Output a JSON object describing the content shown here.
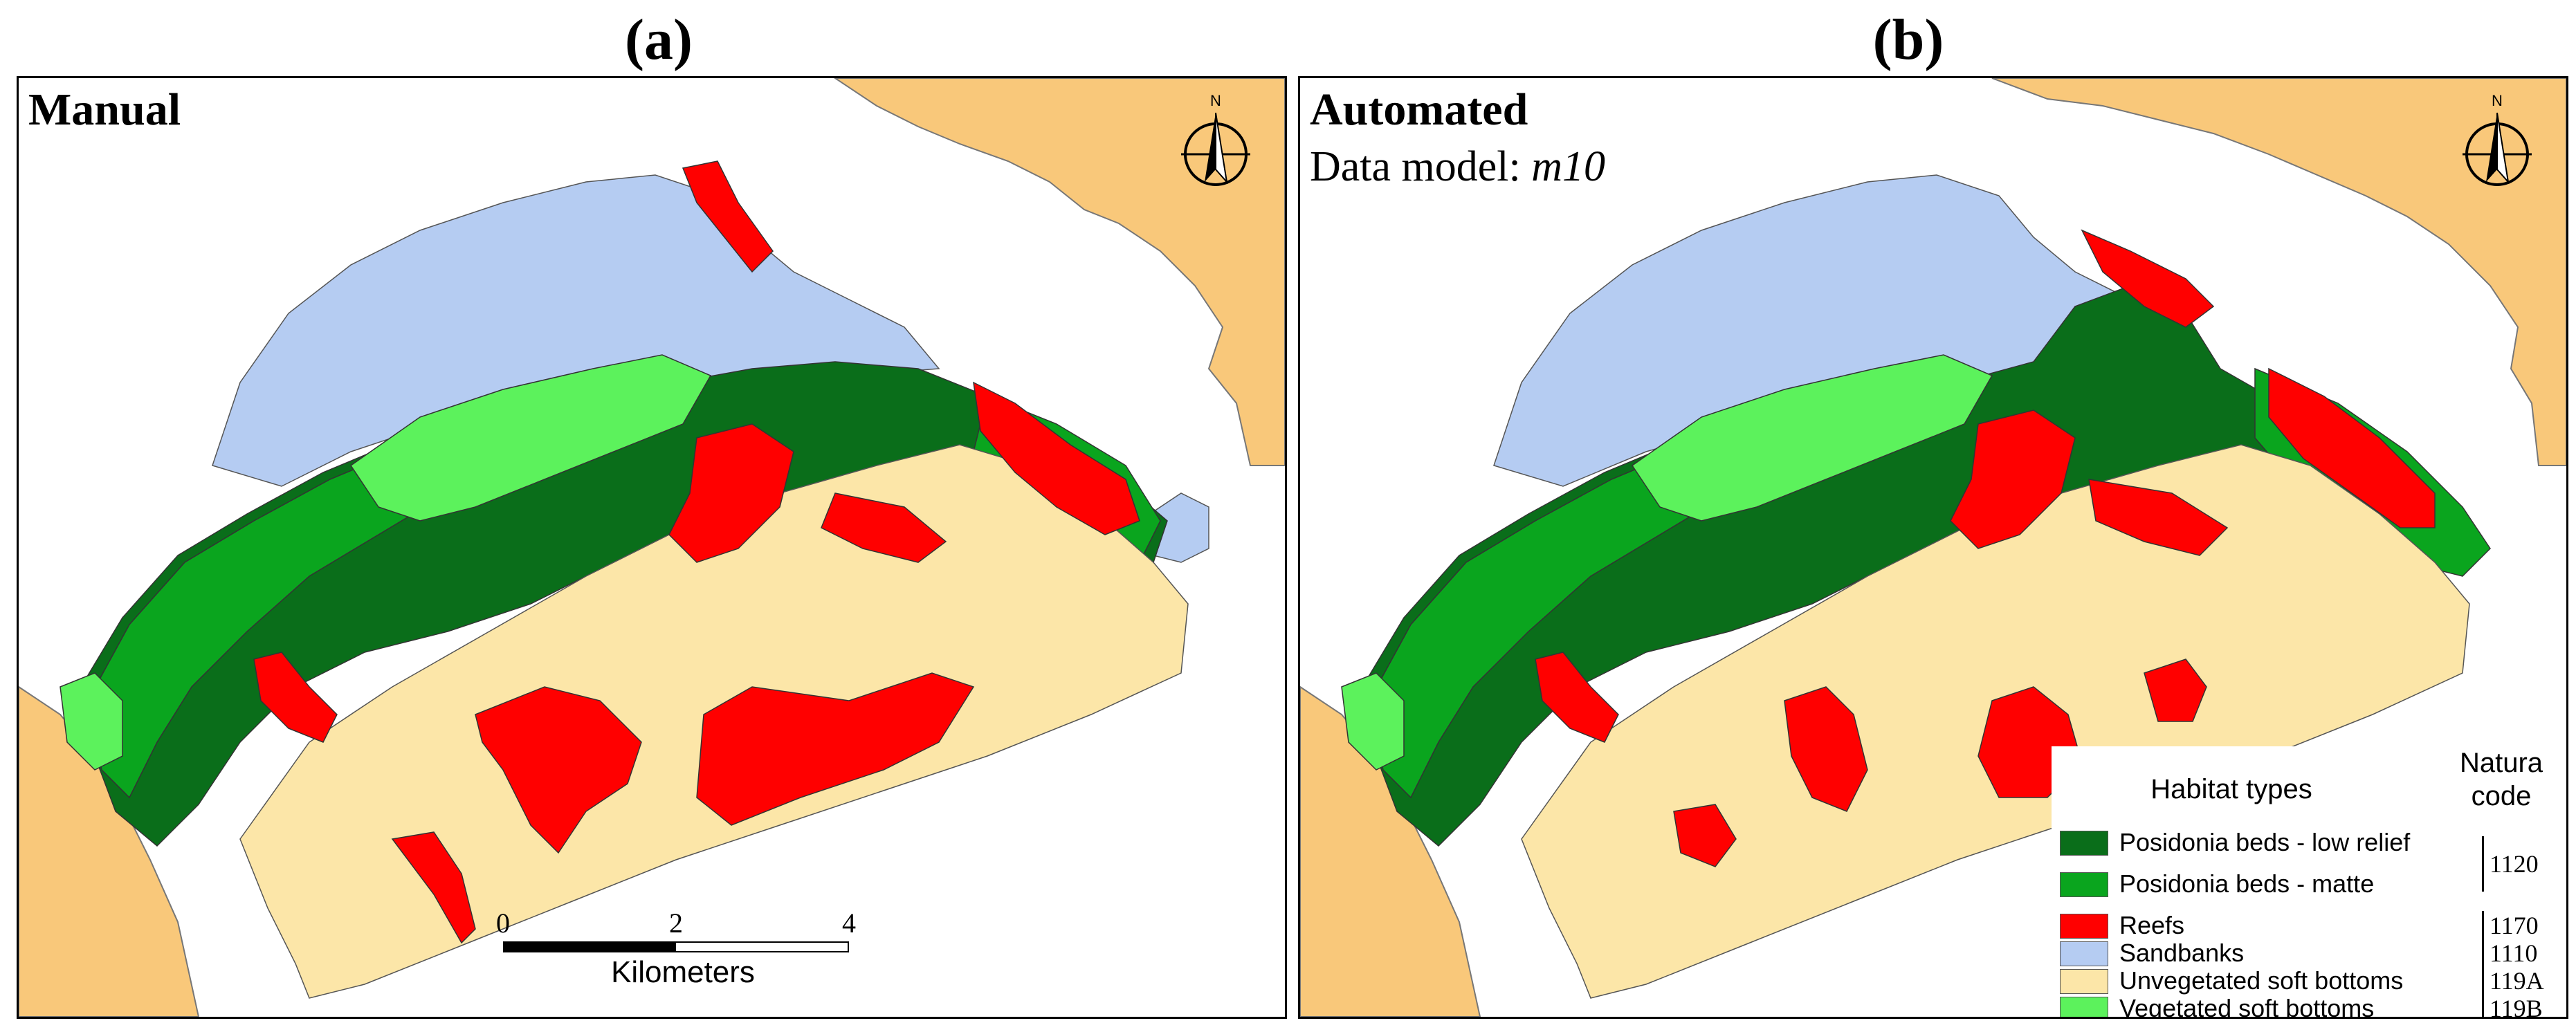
{
  "panels": [
    {
      "letter": "(a)",
      "label": "Manual",
      "subtitle": ""
    },
    {
      "letter": "(b)",
      "label": "Automated",
      "subtitle_prefix": "Data model: ",
      "subtitle_model": "m10"
    }
  ],
  "north_arrow": {
    "letter": "N"
  },
  "scale_bar": {
    "ticks": [
      "0",
      "2",
      "4"
    ],
    "unit": "Kilometers"
  },
  "legend": {
    "title": "Habitat types",
    "code_header_line1": "Natura",
    "code_header_line2": "code",
    "items": [
      {
        "label": "Posidonia beds - low relief",
        "color": "#0a6e1a",
        "code": ""
      },
      {
        "label": "Posidonia beds - matte",
        "color": "#0aa51e",
        "code": "1120"
      },
      {
        "label": "Reefs",
        "color": "#ff0000",
        "code": "1170"
      },
      {
        "label": "Sandbanks",
        "color": "#b5ccf2",
        "code": "1110"
      },
      {
        "label": "Unvegetated soft bottoms",
        "color": "#fce6a8",
        "code": "119A"
      },
      {
        "label": "Vegetated soft bottoms",
        "color": "#5cf25c",
        "code": "119B"
      }
    ]
  },
  "colors": {
    "land": "#f9c87a",
    "sea": "#ffffff",
    "border": "#000000"
  }
}
